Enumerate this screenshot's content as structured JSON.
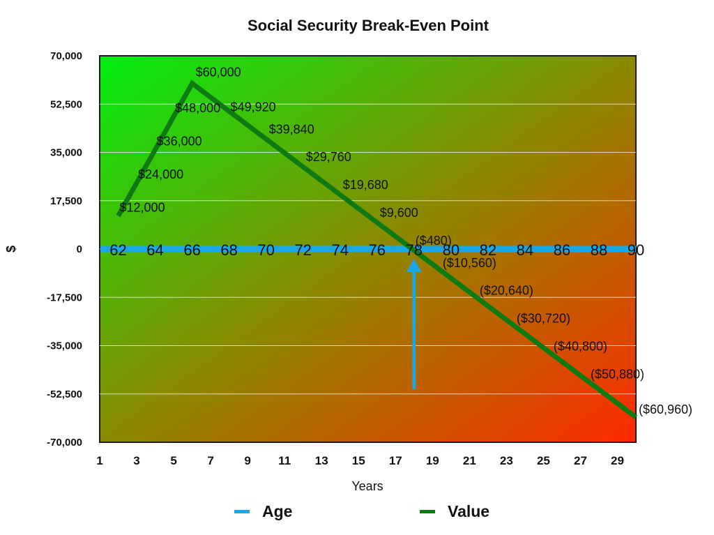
{
  "chart_data": {
    "type": "line",
    "title": "Social Security Break-Even Point",
    "xlabel": "Years",
    "ylabel": "$",
    "ylim": [
      -70000,
      70000
    ],
    "xlim": [
      1,
      30
    ],
    "y_ticks": [
      "70,000",
      "52,500",
      "35,000",
      "17,500",
      "0",
      "-17,500",
      "-35,000",
      "-52,500",
      "-70,000"
    ],
    "x_ticks": [
      "1",
      "3",
      "5",
      "7",
      "9",
      "11",
      "13",
      "15",
      "17",
      "19",
      "21",
      "23",
      "25",
      "27",
      "29"
    ],
    "grid": true,
    "legend_position": "bottom",
    "background": "diagonal gradient green (top-left) to red (bottom-right)",
    "series": [
      {
        "name": "Age",
        "color": "#1aa7e6",
        "x": [
          2,
          4,
          6,
          8,
          10,
          12,
          14,
          16,
          18,
          20,
          22,
          24,
          26,
          28,
          30
        ],
        "values": [
          0,
          0,
          0,
          0,
          0,
          0,
          0,
          0,
          0,
          0,
          0,
          0,
          0,
          0,
          0
        ],
        "point_labels": [
          "62",
          "64",
          "66",
          "68",
          "70",
          "72",
          "74",
          "76",
          "78",
          "80",
          "82",
          "84",
          "86",
          "88",
          "90"
        ]
      },
      {
        "name": "Value",
        "color": "#0e7a12",
        "x": [
          2,
          3,
          4,
          5,
          6,
          8,
          10,
          12,
          14,
          16,
          18,
          20,
          22,
          24,
          26,
          28,
          30
        ],
        "values": [
          12000,
          24000,
          36000,
          48000,
          60000,
          49920,
          39840,
          29760,
          19680,
          9600,
          -480,
          -10560,
          -20640,
          -30720,
          -40800,
          -50880,
          -60960
        ],
        "point_labels": [
          "$12,000",
          "$24,000",
          "$36,000",
          "$48,000",
          "$60,000",
          "$49,920",
          "$39,840",
          "$29,760",
          "$19,680",
          "$9,600",
          "($480)",
          "($10,560)",
          "($20,640)",
          "($30,720)",
          "($40,800)",
          "($50,880)",
          "($60,960)"
        ]
      }
    ],
    "annotations": [
      {
        "type": "arrow",
        "color": "#1aa7e6",
        "x": 18,
        "points_to": "Age 78 break-even"
      }
    ]
  },
  "legend": {
    "items": [
      {
        "label": "Age",
        "color": "#1aa7e6"
      },
      {
        "label": "Value",
        "color": "#0e7a12"
      }
    ]
  }
}
